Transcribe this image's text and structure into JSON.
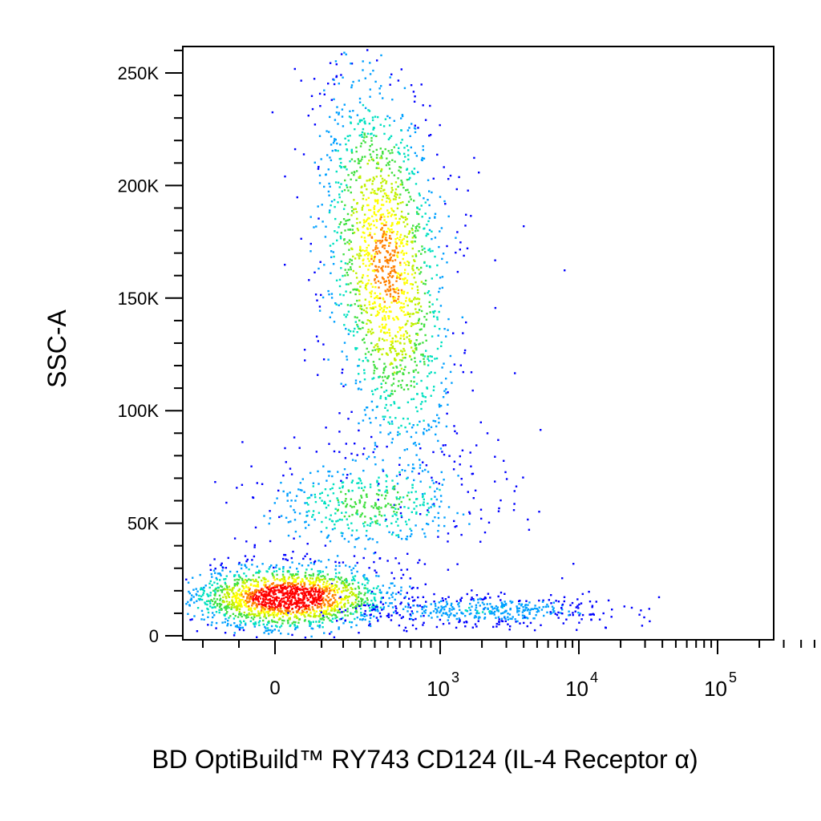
{
  "chart_data": {
    "type": "scatter",
    "subtype": "flow-cytometry-density-dot-plot",
    "xlabel": "BD OptiBuild™ RY743 CD124 (IL-4 Receptor α)",
    "ylabel": "SSC-A",
    "x_scale": "biexponential",
    "y_scale": "linear",
    "ylim": [
      0,
      262144
    ],
    "y_ticks": [
      {
        "value": 0,
        "label": "0"
      },
      {
        "value": 50000,
        "label": "50K"
      },
      {
        "value": 100000,
        "label": "100K"
      },
      {
        "value": 150000,
        "label": "150K"
      },
      {
        "value": 200000,
        "label": "200K"
      },
      {
        "value": 250000,
        "label": "250K"
      }
    ],
    "x_ticks": [
      {
        "value": 0,
        "label": "0"
      },
      {
        "value": 1000,
        "base": "10",
        "exp": "3"
      },
      {
        "value": 10000,
        "base": "10",
        "exp": "4"
      },
      {
        "value": 100000,
        "base": "10",
        "exp": "5"
      }
    ],
    "color_map": [
      "#0000ff",
      "#00a0ff",
      "#00e0c0",
      "#40e040",
      "#c0f000",
      "#ffff00",
      "#ff8000",
      "#ff0000"
    ],
    "grid": false,
    "legend": "none",
    "populations": [
      {
        "x_center": 0,
        "y_center": 18000,
        "density": "high"
      },
      {
        "x_center": 350,
        "y_center": 55000,
        "density": "medium"
      },
      {
        "x_center": 450,
        "y_center": 160000,
        "density": "medium-high"
      },
      {
        "x_center": 2500,
        "y_center": 12000,
        "density": "low"
      }
    ]
  }
}
